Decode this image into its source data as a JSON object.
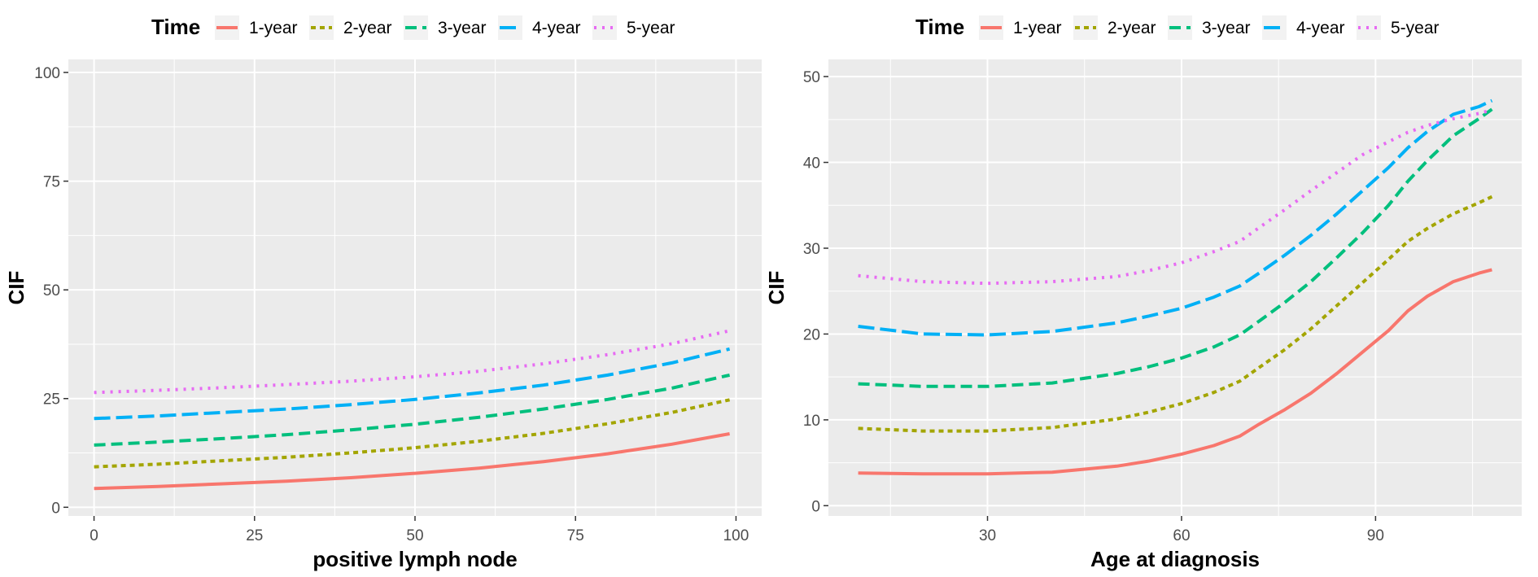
{
  "colors": {
    "panel_bg": "#EBEBEB",
    "grid": "#FFFFFF",
    "tick": "#333333"
  },
  "chart_data": [
    {
      "type": "line",
      "xlabel": "positive lymph node",
      "ylabel": "CIF",
      "legend_title": "Time",
      "legend_position": "top",
      "grid": true,
      "xlim": [
        -4,
        104
      ],
      "ylim": [
        -2,
        103
      ],
      "xticks": [
        0,
        25,
        50,
        75,
        100
      ],
      "yticks": [
        0,
        25,
        50,
        75,
        100
      ],
      "series": [
        {
          "name": "1-year",
          "color": "#F8766D",
          "dash": "solid",
          "x": [
            0,
            10,
            20,
            30,
            40,
            50,
            60,
            70,
            80,
            90,
            99
          ],
          "y": [
            4.3,
            4.8,
            5.4,
            6.0,
            6.8,
            7.8,
            9.0,
            10.5,
            12.3,
            14.5,
            16.9
          ]
        },
        {
          "name": "2-year",
          "color": "#A3A500",
          "dash": "dotted",
          "x": [
            0,
            10,
            20,
            30,
            40,
            50,
            60,
            70,
            80,
            90,
            99
          ],
          "y": [
            9.3,
            9.9,
            10.7,
            11.5,
            12.5,
            13.7,
            15.2,
            17.0,
            19.2,
            21.8,
            24.7
          ]
        },
        {
          "name": "3-year",
          "color": "#00BF7D",
          "dash": "dashed",
          "x": [
            0,
            10,
            20,
            30,
            40,
            50,
            60,
            70,
            80,
            90,
            99
          ],
          "y": [
            14.3,
            15.0,
            15.8,
            16.7,
            17.8,
            19.1,
            20.7,
            22.6,
            24.8,
            27.4,
            30.4
          ]
        },
        {
          "name": "4-year",
          "color": "#00B0F6",
          "dash": "longdash",
          "x": [
            0,
            10,
            20,
            30,
            40,
            50,
            60,
            70,
            80,
            90,
            99
          ],
          "y": [
            20.4,
            21.0,
            21.8,
            22.6,
            23.6,
            24.8,
            26.3,
            28.1,
            30.4,
            33.2,
            36.4
          ]
        },
        {
          "name": "5-year",
          "color": "#E76BF3",
          "dash": "dotted2",
          "x": [
            0,
            10,
            20,
            30,
            40,
            50,
            60,
            70,
            80,
            90,
            99
          ],
          "y": [
            26.4,
            26.9,
            27.5,
            28.2,
            29.0,
            30.0,
            31.3,
            33.0,
            35.1,
            37.6,
            40.6
          ]
        }
      ]
    },
    {
      "type": "line",
      "xlabel": "Age at diagnosis",
      "ylabel": "CIF",
      "legend_title": "Time",
      "legend_position": "top",
      "grid": true,
      "xlim": [
        5.4,
        112.6
      ],
      "ylim": [
        -1.2,
        52.0
      ],
      "xticks": [
        30,
        60,
        90
      ],
      "yticks": [
        0,
        10,
        20,
        30,
        40,
        50
      ],
      "series": [
        {
          "name": "1-year",
          "color": "#F8766D",
          "dash": "solid",
          "x": [
            10,
            20,
            30,
            40,
            50,
            55,
            60,
            65,
            69,
            72,
            76,
            80,
            84,
            88,
            92,
            95,
            98,
            102,
            106,
            108
          ],
          "y": [
            3.8,
            3.7,
            3.7,
            3.9,
            4.6,
            5.2,
            6.0,
            7.0,
            8.1,
            9.5,
            11.2,
            13.1,
            15.4,
            17.9,
            20.4,
            22.7,
            24.4,
            26.1,
            27.1,
            27.5
          ]
        },
        {
          "name": "2-year",
          "color": "#A3A500",
          "dash": "dotted",
          "x": [
            10,
            20,
            30,
            40,
            50,
            55,
            60,
            65,
            69,
            72,
            76,
            80,
            84,
            88,
            92,
            95,
            98,
            102,
            106,
            108
          ],
          "y": [
            9.0,
            8.7,
            8.7,
            9.1,
            10.1,
            10.9,
            11.9,
            13.2,
            14.5,
            16.1,
            18.2,
            20.6,
            23.3,
            26.0,
            28.7,
            30.8,
            32.3,
            34.0,
            35.3,
            36.0
          ]
        },
        {
          "name": "3-year",
          "color": "#00BF7D",
          "dash": "dashed",
          "x": [
            10,
            20,
            30,
            40,
            50,
            55,
            60,
            65,
            69,
            72,
            76,
            80,
            84,
            88,
            92,
            95,
            98,
            102,
            106,
            108
          ],
          "y": [
            14.2,
            13.9,
            13.9,
            14.3,
            15.4,
            16.2,
            17.2,
            18.5,
            19.9,
            21.5,
            23.7,
            26.1,
            28.9,
            31.8,
            35.0,
            37.8,
            40.2,
            43.1,
            45.1,
            46.2
          ]
        },
        {
          "name": "4-year",
          "color": "#00B0F6",
          "dash": "longdash",
          "x": [
            10,
            20,
            30,
            40,
            50,
            55,
            60,
            65,
            69,
            72,
            76,
            80,
            84,
            88,
            92,
            95,
            98,
            102,
            106,
            108
          ],
          "y": [
            20.9,
            20.0,
            19.9,
            20.3,
            21.3,
            22.1,
            23.0,
            24.3,
            25.6,
            27.1,
            29.2,
            31.5,
            34.0,
            36.7,
            39.4,
            41.7,
            43.6,
            45.6,
            46.5,
            47.2
          ]
        },
        {
          "name": "5-year",
          "color": "#E76BF3",
          "dash": "dotted2",
          "x": [
            10,
            20,
            30,
            40,
            50,
            55,
            60,
            65,
            69,
            72,
            76,
            80,
            84,
            88,
            92,
            95,
            98,
            102,
            106,
            108
          ],
          "y": [
            26.8,
            26.1,
            25.9,
            26.1,
            26.7,
            27.4,
            28.3,
            29.6,
            30.8,
            32.4,
            34.5,
            36.7,
            38.8,
            40.9,
            42.4,
            43.5,
            44.3,
            45.1,
            45.7,
            46.1
          ]
        }
      ]
    }
  ]
}
